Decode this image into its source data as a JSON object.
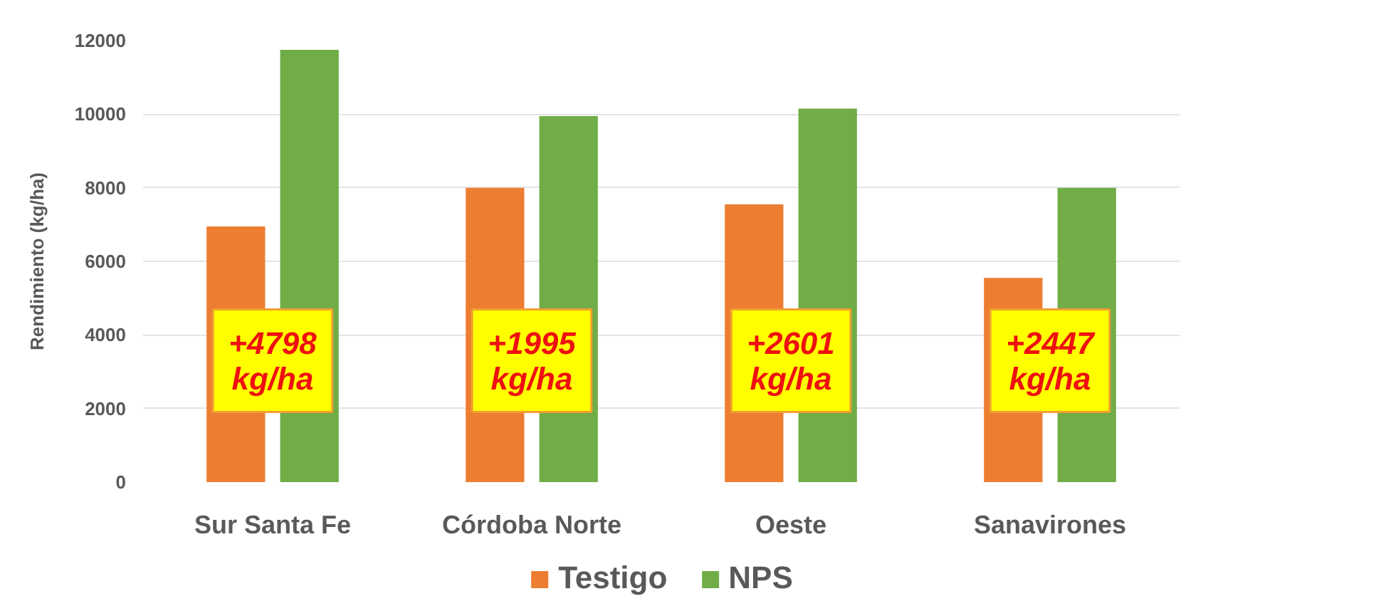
{
  "chart_data": {
    "type": "bar",
    "ylabel": "Rendimiento (kg/ha)",
    "categories": [
      "Sur Santa Fe",
      "Córdoba Norte",
      "Oeste",
      "Sanavirones"
    ],
    "series": [
      {
        "name": "Testigo",
        "color": "#ed7d31",
        "values": [
          6950,
          8000,
          7550,
          5550
        ]
      },
      {
        "name": "NPS",
        "color": "#70ad47",
        "values": [
          11750,
          9950,
          10150,
          8000
        ]
      }
    ],
    "ylim": [
      0,
      12000
    ],
    "yticks": [
      0,
      2000,
      4000,
      6000,
      8000,
      10000,
      12000
    ],
    "grid": "y",
    "legend": "bottom",
    "annotations": [
      "+4798\nkg/ha",
      "+1995\nkg/ha",
      "+2601\nkg/ha",
      "+2447\nkg/ha"
    ]
  }
}
